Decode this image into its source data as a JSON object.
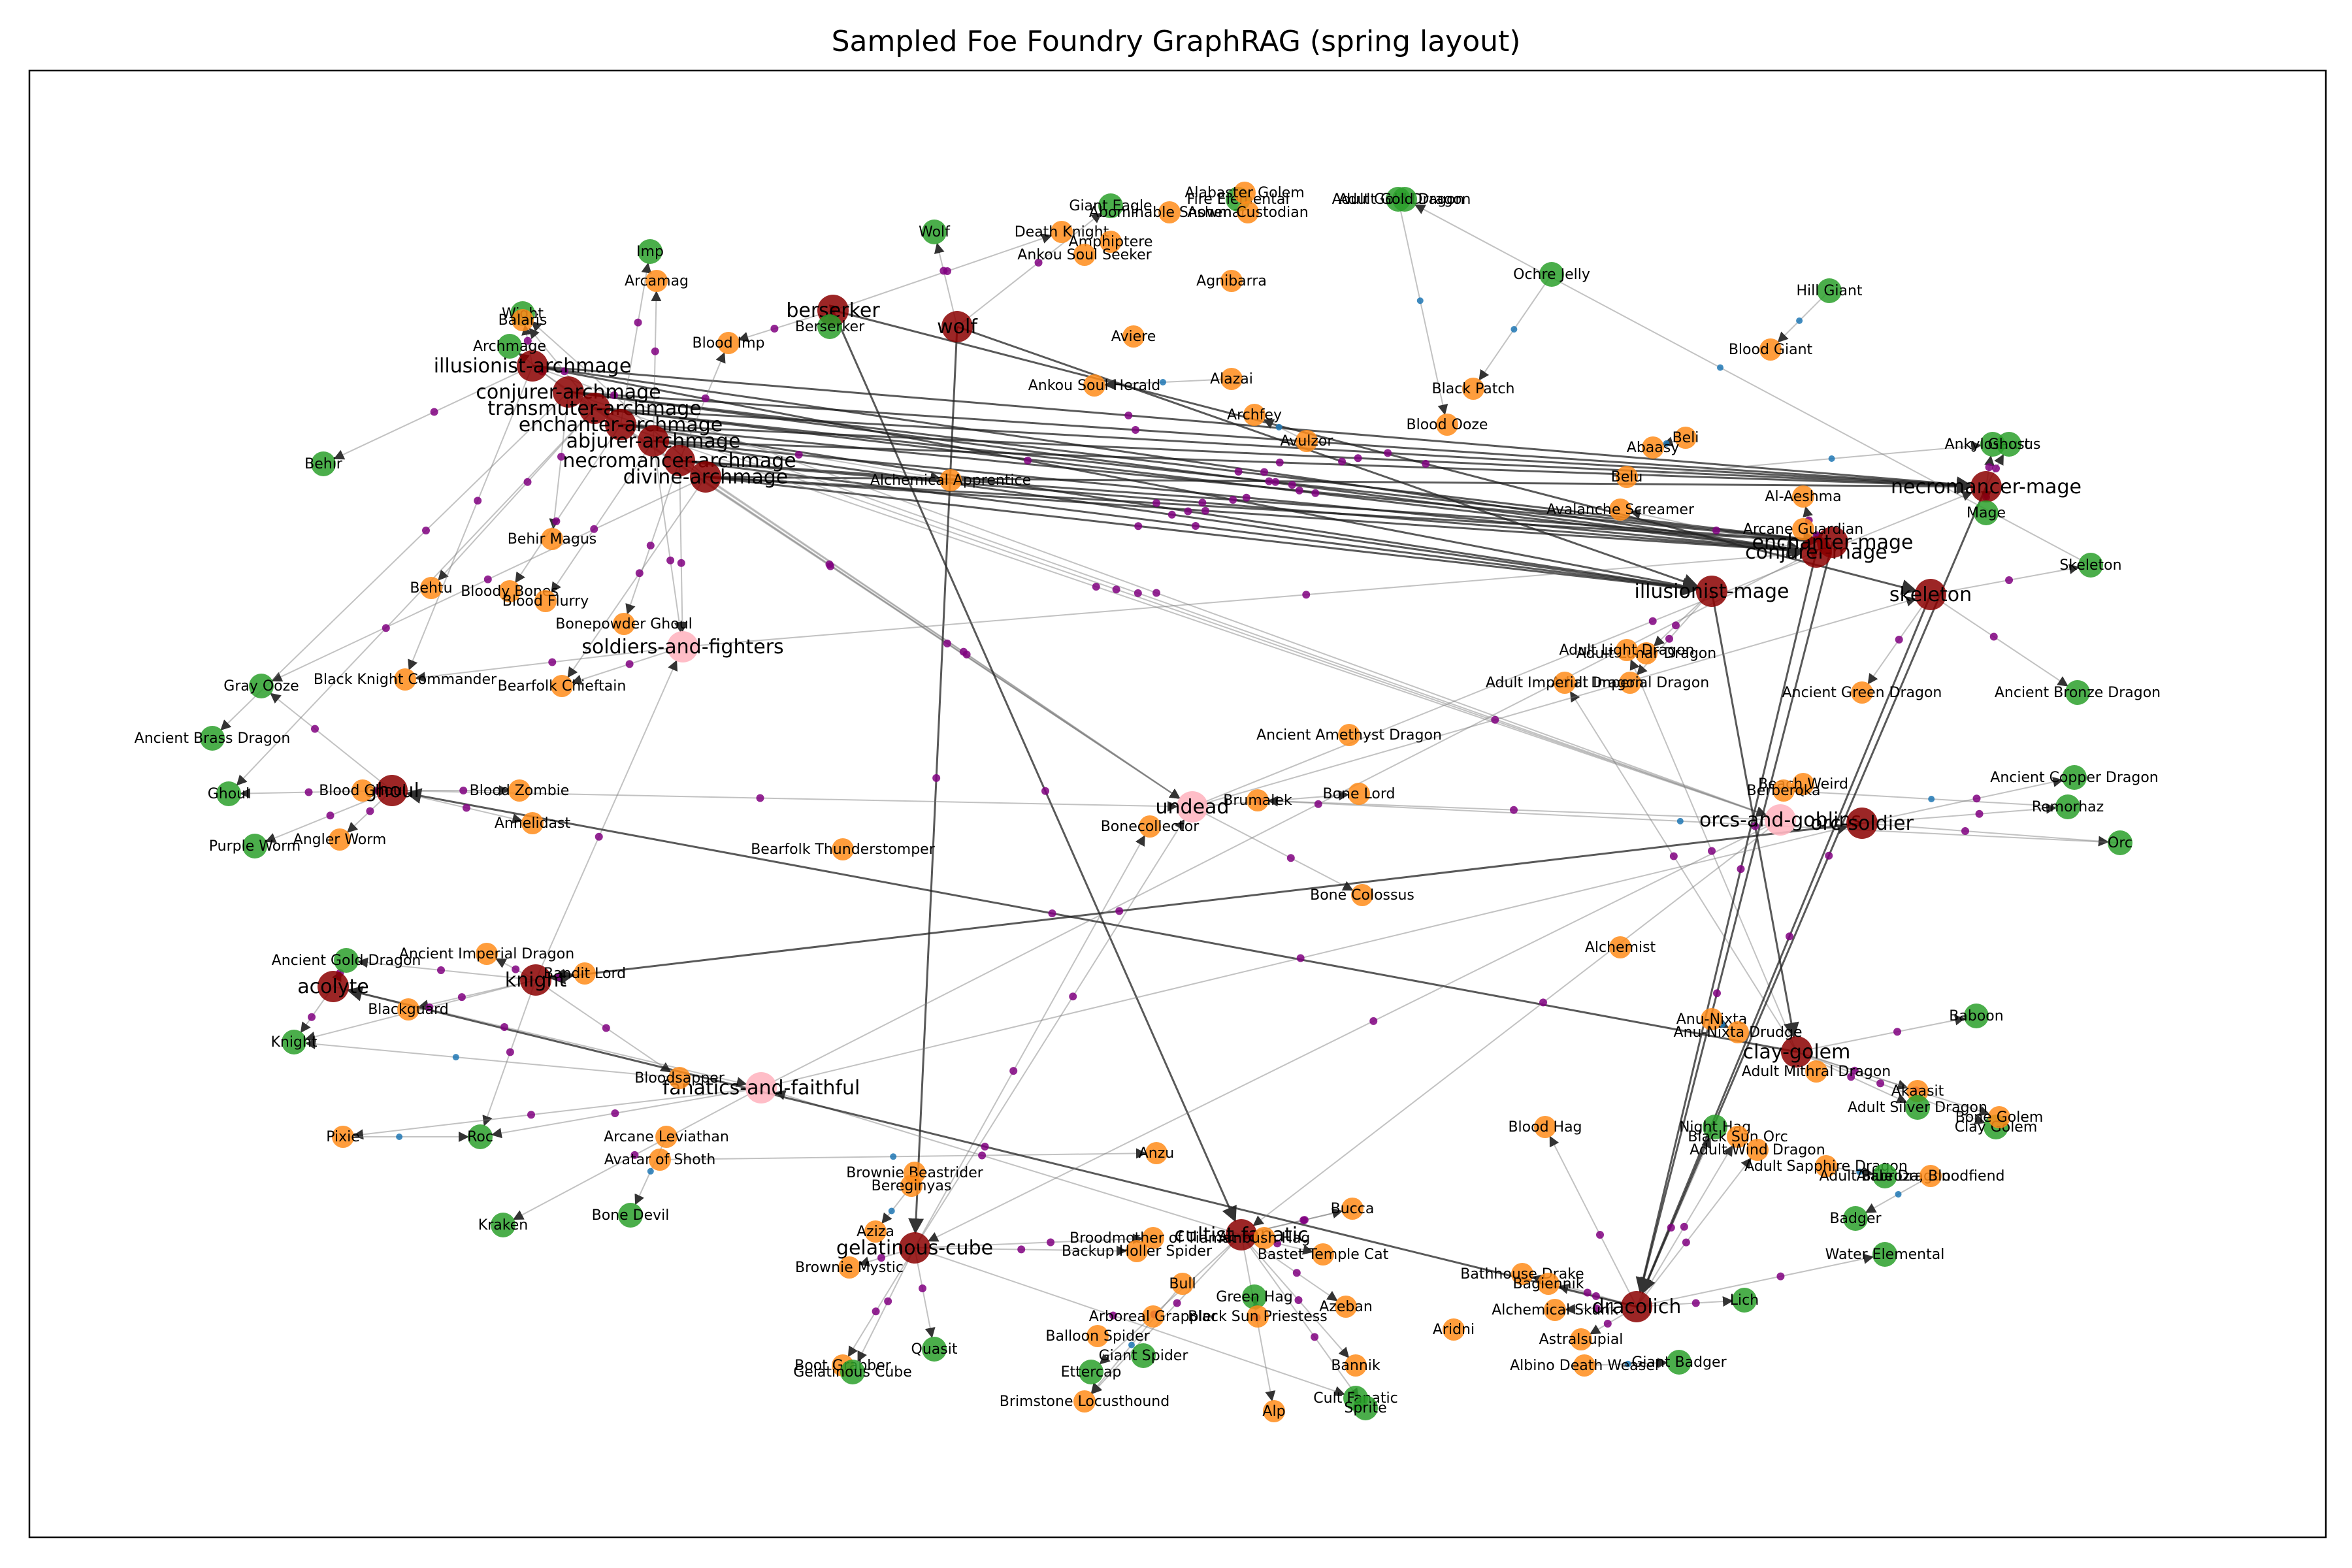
{
  "title": "Sampled Foe Foundry GraphRAG (spring layout)",
  "legend_colors": {
    "archetype": "#8b0000",
    "category": "#ffb6c1",
    "monster": "#ff8c1a",
    "reference": "#2ca02c",
    "fragment": "#800080",
    "chunk": "#1f77b4"
  },
  "nodes": [
    {
      "label": "illusionist-archmage",
      "kind": "archetype"
    },
    {
      "label": "conjurer-archmage",
      "kind": "archetype"
    },
    {
      "label": "transmuter-archmage",
      "kind": "archetype"
    },
    {
      "label": "enchanter-archmage",
      "kind": "archetype"
    },
    {
      "label": "abjurer-archmage",
      "kind": "archetype"
    },
    {
      "label": "necromancer-archmage",
      "kind": "archetype"
    },
    {
      "label": "divine-archmage",
      "kind": "archetype"
    },
    {
      "label": "berserker",
      "kind": "archetype"
    },
    {
      "label": "wolf",
      "kind": "archetype"
    },
    {
      "label": "ghoul",
      "kind": "archetype"
    },
    {
      "label": "knight",
      "kind": "archetype"
    },
    {
      "label": "acolyte",
      "kind": "archetype"
    },
    {
      "label": "gelatinous-cube",
      "kind": "archetype"
    },
    {
      "label": "cultist-fanatic",
      "kind": "archetype"
    },
    {
      "label": "illusionist-mage",
      "kind": "archetype"
    },
    {
      "label": "skeleton",
      "kind": "archetype"
    },
    {
      "label": "necromancer-mage",
      "kind": "archetype"
    },
    {
      "label": "conjurer-mage",
      "kind": "archetype"
    },
    {
      "label": "enchanter-mage",
      "kind": "archetype"
    },
    {
      "label": "orcs-and-goblins",
      "kind": "category"
    },
    {
      "label": "orc-soldier",
      "kind": "archetype"
    },
    {
      "label": "clay-golem",
      "kind": "archetype"
    },
    {
      "label": "dracolich",
      "kind": "archetype"
    },
    {
      "label": "soldiers-and-fighters",
      "kind": "category"
    },
    {
      "label": "undead",
      "kind": "category"
    },
    {
      "label": "fanatics-and-faithful",
      "kind": "category"
    },
    {
      "label": "Imp",
      "kind": "reference"
    },
    {
      "label": "Wight",
      "kind": "reference"
    },
    {
      "label": "Archmage",
      "kind": "reference"
    },
    {
      "label": "Balaris",
      "kind": "monster"
    },
    {
      "label": "Arcamag",
      "kind": "monster"
    },
    {
      "label": "Blood Imp",
      "kind": "monster"
    },
    {
      "label": "Berserker",
      "kind": "reference"
    },
    {
      "label": "Wolf",
      "kind": "reference"
    },
    {
      "label": "Giant Eagle",
      "kind": "reference"
    },
    {
      "label": "Death Knight",
      "kind": "monster"
    },
    {
      "label": "Amphiptere",
      "kind": "monster"
    },
    {
      "label": "Ankou Soul Seeker",
      "kind": "monster"
    },
    {
      "label": "Abominable Snowman",
      "kind": "monster"
    },
    {
      "label": "Fire Elemental",
      "kind": "reference"
    },
    {
      "label": "Alabaster Golem",
      "kind": "monster"
    },
    {
      "label": "Ashen Custodian",
      "kind": "monster"
    },
    {
      "label": "Agnibarra",
      "kind": "monster"
    },
    {
      "label": "Aviere",
      "kind": "monster"
    },
    {
      "label": "Alazai",
      "kind": "monster"
    },
    {
      "label": "Ankou Soul Herald",
      "kind": "monster"
    },
    {
      "label": "Archfey",
      "kind": "monster"
    },
    {
      "label": "Avulzor",
      "kind": "monster"
    },
    {
      "label": "Adult Gold Dragon",
      "kind": "reference"
    },
    {
      "label": "Ochre Jelly",
      "kind": "reference"
    },
    {
      "label": "Hill Giant",
      "kind": "reference"
    },
    {
      "label": "Blood Giant",
      "kind": "monster"
    },
    {
      "label": "Black Patch",
      "kind": "monster"
    },
    {
      "label": "Blood Ooze",
      "kind": "monster"
    },
    {
      "label": "Beli",
      "kind": "monster"
    },
    {
      "label": "Abaasy",
      "kind": "monster"
    },
    {
      "label": "Belu",
      "kind": "monster"
    },
    {
      "label": "Ankylosaurus",
      "kind": "reference"
    },
    {
      "label": "Ghost",
      "kind": "reference"
    },
    {
      "label": "Mage",
      "kind": "reference"
    },
    {
      "label": "Al-Aeshma",
      "kind": "monster"
    },
    {
      "label": "Avalanche Screamer",
      "kind": "monster"
    },
    {
      "label": "Arcane Guardian",
      "kind": "monster"
    },
    {
      "label": "Skeleton",
      "kind": "reference"
    },
    {
      "label": "Behir",
      "kind": "reference"
    },
    {
      "label": "Behir Magus",
      "kind": "monster"
    },
    {
      "label": "Behtu",
      "kind": "monster"
    },
    {
      "label": "Bloody Bones",
      "kind": "monster"
    },
    {
      "label": "Blood Flurry",
      "kind": "monster"
    },
    {
      "label": "Bonepowder Ghoul",
      "kind": "monster"
    },
    {
      "label": "Alchemical Apprentice",
      "kind": "monster"
    },
    {
      "label": "Gray Ooze",
      "kind": "reference"
    },
    {
      "label": "Black Knight Commander",
      "kind": "monster"
    },
    {
      "label": "Bearfolk Chieftain",
      "kind": "monster"
    },
    {
      "label": "Ancient Brass Dragon",
      "kind": "reference"
    },
    {
      "label": "Ghoul",
      "kind": "reference"
    },
    {
      "label": "Blood Ghoul",
      "kind": "monster"
    },
    {
      "label": "Blood Zombie",
      "kind": "monster"
    },
    {
      "label": "Annelidast",
      "kind": "monster"
    },
    {
      "label": "Angler Worm",
      "kind": "monster"
    },
    {
      "label": "Purple Worm",
      "kind": "reference"
    },
    {
      "label": "Adult Lunar Dragon",
      "kind": "monster"
    },
    {
      "label": "Adult Imperial Dragon",
      "kind": "monster"
    },
    {
      "label": "Ancient Amethyst Dragon",
      "kind": "monster"
    },
    {
      "label": "Ancient Green Dragon",
      "kind": "monster"
    },
    {
      "label": "Ancient Bronze Dragon",
      "kind": "reference"
    },
    {
      "label": "Ancient Copper Dragon",
      "kind": "reference"
    },
    {
      "label": "Remorhaz",
      "kind": "reference"
    },
    {
      "label": "Orc",
      "kind": "reference"
    },
    {
      "label": "Beach Weird",
      "kind": "monster"
    },
    {
      "label": "Berberoka",
      "kind": "monster"
    },
    {
      "label": "Brumalek",
      "kind": "monster"
    },
    {
      "label": "Bone Lord",
      "kind": "monster"
    },
    {
      "label": "Bone Colossus",
      "kind": "monster"
    },
    {
      "label": "Bearfolk Thunderstomper",
      "kind": "monster"
    },
    {
      "label": "Bonecollector",
      "kind": "monster"
    },
    {
      "label": "Alchemist",
      "kind": "monster"
    },
    {
      "label": "Ancient Gold Dragon",
      "kind": "reference"
    },
    {
      "label": "Ancient Imperial Dragon",
      "kind": "monster"
    },
    {
      "label": "Bandit Lord",
      "kind": "monster"
    },
    {
      "label": "Knight",
      "kind": "reference"
    },
    {
      "label": "Blackguard",
      "kind": "monster"
    },
    {
      "label": "Bloodsapper",
      "kind": "monster"
    },
    {
      "label": "Pixie",
      "kind": "monster"
    },
    {
      "label": "Roc",
      "kind": "reference"
    },
    {
      "label": "Arcane Leviathan",
      "kind": "monster"
    },
    {
      "label": "Avatar of Shoth",
      "kind": "monster"
    },
    {
      "label": "Kraken",
      "kind": "reference"
    },
    {
      "label": "Bone Devil",
      "kind": "reference"
    },
    {
      "label": "Anzu",
      "kind": "monster"
    },
    {
      "label": "Brownie Beastrider",
      "kind": "monster"
    },
    {
      "label": "Bereginyas",
      "kind": "monster"
    },
    {
      "label": "Aziza",
      "kind": "monster"
    },
    {
      "label": "Brownie Mystic",
      "kind": "monster"
    },
    {
      "label": "Boot Grabber",
      "kind": "monster"
    },
    {
      "label": "Gelatinous Cube",
      "kind": "reference"
    },
    {
      "label": "Quasit",
      "kind": "reference"
    },
    {
      "label": "Broodmother of Tiamat",
      "kind": "monster"
    },
    {
      "label": "Backup Holler Spider",
      "kind": "monster"
    },
    {
      "label": "Bull",
      "kind": "monster"
    },
    {
      "label": "Arboreal Grappler",
      "kind": "monster"
    },
    {
      "label": "Balloon Spider",
      "kind": "monster"
    },
    {
      "label": "Giant Spider",
      "kind": "reference"
    },
    {
      "label": "Ettercap",
      "kind": "reference"
    },
    {
      "label": "Brimstone Locusthound",
      "kind": "monster"
    },
    {
      "label": "Green Hag",
      "kind": "reference"
    },
    {
      "label": "Black Sun Priestess",
      "kind": "monster"
    },
    {
      "label": "Azeban",
      "kind": "monster"
    },
    {
      "label": "Bannik",
      "kind": "monster"
    },
    {
      "label": "Alp",
      "kind": "monster"
    },
    {
      "label": "Cult Fanatic",
      "kind": "reference"
    },
    {
      "label": "Sprite",
      "kind": "reference"
    },
    {
      "label": "Bucca",
      "kind": "monster"
    },
    {
      "label": "Ambush Hag",
      "kind": "monster"
    },
    {
      "label": "Bastet Temple Cat",
      "kind": "monster"
    },
    {
      "label": "Aridni",
      "kind": "monster"
    },
    {
      "label": "Blood Hag",
      "kind": "monster"
    },
    {
      "label": "Bathhouse Drake",
      "kind": "monster"
    },
    {
      "label": "Bagiennik",
      "kind": "monster"
    },
    {
      "label": "Alchemical Skunk",
      "kind": "monster"
    },
    {
      "label": "Astralsupial",
      "kind": "monster"
    },
    {
      "label": "Albino Death Weasel",
      "kind": "monster"
    },
    {
      "label": "Giant Badger",
      "kind": "reference"
    },
    {
      "label": "Lich",
      "kind": "reference"
    },
    {
      "label": "Water Elemental",
      "kind": "reference"
    },
    {
      "label": "Night Hag",
      "kind": "reference"
    },
    {
      "label": "Black Sun Orc",
      "kind": "monster"
    },
    {
      "label": "Adult Wind Dragon",
      "kind": "monster"
    },
    {
      "label": "Adult Sapphire Dragon",
      "kind": "monster"
    },
    {
      "label": "Adult Blue Dragon",
      "kind": "reference"
    },
    {
      "label": "Alabroza, Bloodfiend",
      "kind": "monster"
    },
    {
      "label": "Badger",
      "kind": "reference"
    },
    {
      "label": "Anu-Nixta",
      "kind": "monster"
    },
    {
      "label": "Anu-Nixta Drudge",
      "kind": "monster"
    },
    {
      "label": "Adult Mithral Dragon",
      "kind": "monster"
    },
    {
      "label": "Akaasit",
      "kind": "monster"
    },
    {
      "label": "Adult Silver Dragon",
      "kind": "reference"
    },
    {
      "label": "Clay Golem",
      "kind": "reference"
    },
    {
      "label": "Bone Golem",
      "kind": "monster"
    },
    {
      "label": "Baboon",
      "kind": "reference"
    },
    {
      "label": "Adult Light Dragon",
      "kind": "monster"
    },
    {
      "label": "Adult Imperial Dragon",
      "kind": "monster"
    },
    {
      "label": "Adult Gold Dragon",
      "kind": "reference"
    }
  ]
}
